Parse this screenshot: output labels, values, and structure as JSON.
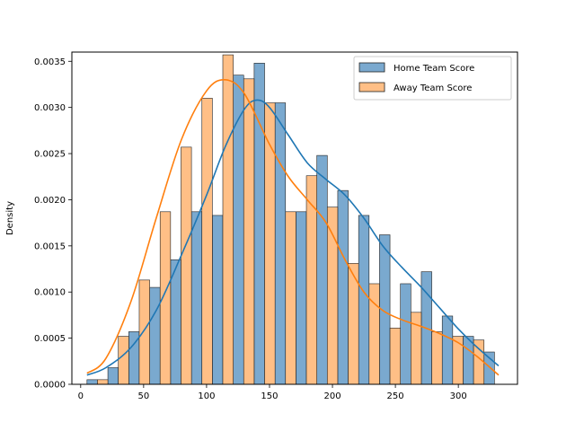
{
  "chart_data": {
    "type": "bar",
    "title": "",
    "xlabel": "",
    "ylabel": "Density",
    "xlim": [
      -7,
      347
    ],
    "ylim": [
      0,
      0.0036
    ],
    "xticks": [
      0,
      50,
      100,
      150,
      200,
      250,
      300
    ],
    "yticks": [
      0.0,
      0.0005,
      0.001,
      0.0015,
      0.002,
      0.0025,
      0.003,
      0.0035
    ],
    "ytick_labels": [
      "0.0000",
      "0.0005",
      "0.0010",
      "0.0015",
      "0.0020",
      "0.0025",
      "0.0030",
      "0.0035"
    ],
    "bin_width": 16.6,
    "bin_start": 5,
    "grid": false,
    "legend": "top-right",
    "series": [
      {
        "name": "Home Team Score",
        "color": "#1f77b4",
        "fill": "#7aa9cf",
        "values": [
          5e-05,
          0.00018,
          0.00057,
          0.00105,
          0.00135,
          0.00187,
          0.00183,
          0.00335,
          0.00348,
          0.00305,
          0.00187,
          0.00248,
          0.0021,
          0.00183,
          0.00162,
          0.00109,
          0.00122,
          0.00074,
          0.00052,
          0.00035
        ],
        "kde_x": [
          5,
          20,
          40,
          60,
          80,
          100,
          115,
          130,
          140,
          150,
          165,
          180,
          195,
          210,
          225,
          240,
          255,
          270,
          285,
          300,
          315,
          332
        ],
        "kde_y": [
          0.0001,
          0.00018,
          0.0004,
          0.0008,
          0.0014,
          0.00205,
          0.00258,
          0.00298,
          0.00308,
          0.003,
          0.0027,
          0.0024,
          0.00222,
          0.00205,
          0.0018,
          0.0015,
          0.00127,
          0.00106,
          0.00083,
          0.0006,
          0.0004,
          0.0002
        ]
      },
      {
        "name": "Away Team Score",
        "color": "#ff7f0e",
        "fill": "#ffbf86",
        "values": [
          5e-05,
          0.00052,
          0.00113,
          0.00187,
          0.00257,
          0.0031,
          0.00357,
          0.00331,
          0.00305,
          0.00187,
          0.00226,
          0.00192,
          0.00131,
          0.00109,
          0.00061,
          0.00078,
          0.00057,
          0.00052,
          0.00048,
          0.0
        ],
        "kde_x": [
          5,
          20,
          40,
          60,
          80,
          100,
          115,
          130,
          150,
          165,
          180,
          195,
          210,
          225,
          240,
          255,
          270,
          285,
          300,
          315,
          332
        ],
        "kde_y": [
          0.00012,
          0.00028,
          0.0009,
          0.0018,
          0.00265,
          0.00318,
          0.0033,
          0.00315,
          0.0026,
          0.00225,
          0.002,
          0.00175,
          0.00135,
          0.001,
          0.0008,
          0.0007,
          0.00063,
          0.00055,
          0.00045,
          0.0003,
          0.0001
        ]
      }
    ]
  }
}
